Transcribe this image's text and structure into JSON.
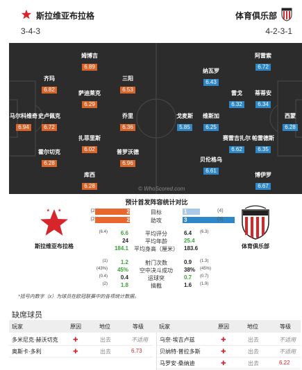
{
  "header": {
    "home_team": "斯拉维亚布拉格",
    "away_team": "体育俱乐部",
    "home_formation": "3-4-3",
    "away_formation": "4-2-3-1"
  },
  "colors": {
    "home": "#d9652b",
    "away": "#2f87c8",
    "pitch": "#2c2c2c"
  },
  "pitch": {
    "watermark": "© WhoScored.com",
    "home_players": [
      {
        "name": "姆博吉",
        "rating": "6.89"
      },
      {
        "name": "齐玛",
        "rating": "6.82"
      },
      {
        "name": "三阳",
        "rating": "6.53"
      },
      {
        "name": "萨迪莱克",
        "rating": "6.29"
      },
      {
        "name": "马尔科维奇",
        "rating": "6.94"
      },
      {
        "name": "史卢佩克",
        "rating": "6.72"
      },
      {
        "name": "乔里",
        "rating": "6.36"
      },
      {
        "name": "扎菲里斯",
        "rating": "6.02"
      },
      {
        "name": "霍尔切克",
        "rating": "6.28"
      },
      {
        "name": "普罗沃德",
        "rating": "6.96"
      },
      {
        "name": "库西",
        "rating": "6.28"
      }
    ],
    "away_players": [
      {
        "name": "阿雷索",
        "rating": "6.72"
      },
      {
        "name": "纳瓦罗",
        "rating": "6.43"
      },
      {
        "name": "雷戈",
        "rating": "6.32"
      },
      {
        "name": "蒂蒂安",
        "rating": "6.34"
      },
      {
        "name": "戈麦斯",
        "rating": "5.85"
      },
      {
        "name": "维斯加",
        "rating": "6.25"
      },
      {
        "name": "西蒙",
        "rating": "6.28"
      },
      {
        "name": "赛雷吉扎尔",
        "rating": "6.62"
      },
      {
        "name": "帕雷德斯",
        "rating": "6.35"
      },
      {
        "name": "贝伦格乌",
        "rating": "6.61"
      },
      {
        "name": "博伊罗",
        "rating": "6.67"
      }
    ]
  },
  "comparison": {
    "title": "预计首发阵容统计对比",
    "home_team": "斯拉维亚布拉格",
    "away_team": "体育俱乐部",
    "bar_rows": [
      {
        "label": "目标",
        "home_count": "(2)",
        "home": "2",
        "away": "1",
        "away_count": "(4)",
        "home_frac": 0.4,
        "away_frac": 0.2
      },
      {
        "label": "助攻",
        "home_count": "(2)",
        "home": "2",
        "away": "3",
        "away_count": "(3)",
        "home_frac": 0.4,
        "away_frac": 0.6
      }
    ],
    "stat_rows": [
      {
        "label": "平均评分",
        "home_sub": "(6.4)",
        "home": "6.6",
        "away": "6.4",
        "away_sub": "(6.3)",
        "home_green": true,
        "away_green": false
      },
      {
        "label": "平均年龄",
        "home_sub": "",
        "home": "24",
        "away": "25.4",
        "away_sub": "",
        "home_green": false,
        "away_green": true
      },
      {
        "label": "平均身高（厘米）",
        "home_sub": "",
        "home": "184.1",
        "away": "183.6",
        "away_sub": "",
        "home_green": true,
        "away_green": false
      },
      {
        "label": "射门次数",
        "home_sub": "(1)",
        "home": "1.2",
        "away": "0.9",
        "away_sub": "(1.3)",
        "home_green": true,
        "away_green": false
      },
      {
        "label": "空中决斗成功",
        "home_sub": "(43%)",
        "home": "45%",
        "away": "38%",
        "away_sub": "(45%)",
        "home_green": true,
        "away_green": false
      },
      {
        "label": "运球突",
        "home_sub": "(0.4)",
        "home": "0.4",
        "away": "0.7",
        "away_sub": "(0.7)",
        "home_green": false,
        "away_green": true
      },
      {
        "label": "搞截",
        "home_sub": "(2)",
        "home": "1.8",
        "away": "1.6",
        "away_sub": "(1.9)",
        "home_green": true,
        "away_green": false
      }
    ],
    "footnote": "*括号内数字（x）为球员在欧冠联赛中的各项统计数据。"
  },
  "missing": {
    "title": "缺席球员",
    "headers": [
      "玩家",
      "原因",
      "地位",
      "等级"
    ],
    "home": [
      {
        "player": "多米尼克·赫沃切克",
        "status": "出去",
        "rating": "不适用"
      },
      {
        "player": "奥斯卡·多利",
        "status": "出去",
        "rating": "6.73"
      }
    ],
    "away": [
      {
        "player": "乌奈·埃吉卢兹",
        "status": "出去",
        "rating": "不适用"
      },
      {
        "player": "贝纳特·普拉多斯",
        "status": "出去",
        "rating": "不适用"
      },
      {
        "player": "马罗安·桑纳迪",
        "status": "出去",
        "rating": "6.22"
      }
    ]
  }
}
